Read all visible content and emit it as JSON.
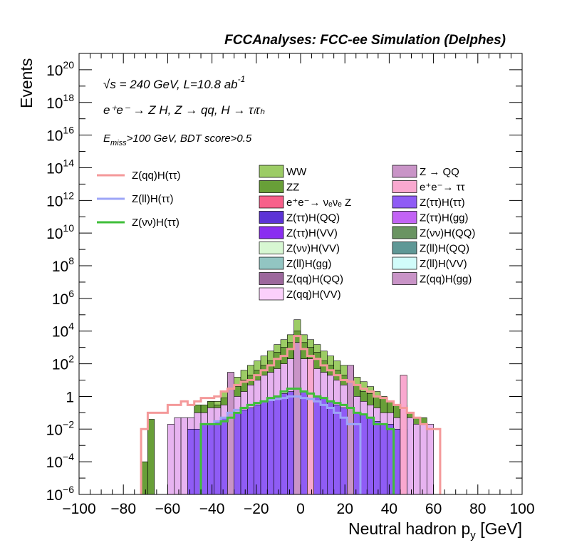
{
  "chart_data": {
    "type": "bar",
    "title": "FCCAnalyses: FCC-ee Simulation (Delphes)",
    "xlabel": "Neutral hadron p",
    "xlabel_sub": "y",
    "xlabel_unit": "[GeV]",
    "ylabel": "Events",
    "log_y": true,
    "xlim": [
      -100,
      100
    ],
    "ylim_exp": [
      -6,
      21
    ],
    "x_ticks": [
      -100,
      -80,
      -60,
      -40,
      -20,
      0,
      20,
      40,
      60,
      80,
      100
    ],
    "x_tick_labels": [
      "−100",
      "−80",
      "−60",
      "−40",
      "−20",
      "0",
      "20",
      "40",
      "60",
      "80",
      "100"
    ],
    "y_ticks": [
      {
        "exp": -6,
        "base": "10",
        "sup": "−6"
      },
      {
        "exp": -4,
        "base": "10",
        "sup": "−4"
      },
      {
        "exp": -2,
        "base": "10",
        "sup": "−2"
      },
      {
        "exp": 0,
        "base": "1",
        "sup": ""
      },
      {
        "exp": 2,
        "base": "10",
        "sup": "2"
      },
      {
        "exp": 4,
        "base": "10",
        "sup": "4"
      },
      {
        "exp": 6,
        "base": "10",
        "sup": "6"
      },
      {
        "exp": 8,
        "base": "10",
        "sup": "8"
      },
      {
        "exp": 10,
        "base": "10",
        "sup": "10"
      },
      {
        "exp": 12,
        "base": "10",
        "sup": "12"
      },
      {
        "exp": 14,
        "base": "10",
        "sup": "14"
      },
      {
        "exp": 16,
        "base": "10",
        "sup": "16"
      },
      {
        "exp": 18,
        "base": "10",
        "sup": "18"
      },
      {
        "exp": 20,
        "base": "10",
        "sup": "20"
      }
    ],
    "annotations": {
      "energy_pre": "s",
      "energy_rest": " = 240 GeV, L=10.8 ab",
      "energy_sup": "-1",
      "process": "e⁺e⁻ → Z H, Z → qq, H → τₗτₕ",
      "cut_main": "E",
      "cut_sub": "miss",
      "cut_rest": ">100 GeV, BDT score>0.5"
    },
    "stack_layers": [
      {
        "name": "WW",
        "color": "#9ccc65",
        "values": [
          null,
          null,
          null,
          null,
          null,
          null,
          null,
          null,
          null,
          null,
          null,
          null,
          null,
          null,
          null,
          null,
          null,
          0.5,
          2,
          8,
          15,
          40,
          80,
          150,
          300,
          600,
          1500,
          3000,
          6000,
          50000,
          6000,
          3000,
          1500,
          600,
          300,
          150,
          80,
          40,
          15,
          8,
          4,
          2,
          1,
          null,
          null,
          null,
          null,
          null,
          null,
          null,
          null,
          null,
          null,
          null,
          null,
          null,
          null,
          null,
          null,
          null
        ]
      },
      {
        "name": "ZZ",
        "color": "#689f38",
        "values": [
          null,
          null,
          null,
          null,
          null,
          null,
          0.0001,
          0.04,
          null,
          null,
          null,
          null,
          null,
          null,
          0.3,
          0.3,
          0.5,
          0.3,
          0.8,
          2,
          4,
          10,
          20,
          40,
          80,
          150,
          500,
          1000,
          2000,
          10000,
          2000,
          1000,
          500,
          150,
          80,
          40,
          20,
          10,
          5,
          2,
          1.5,
          1,
          0.8,
          0.5,
          0.3,
          0.3,
          0.1,
          0.05,
          0.05,
          null,
          null,
          null,
          null,
          null,
          null,
          null,
          null,
          null,
          null,
          null
        ]
      },
      {
        "name": "Z(νν)H(QQ)",
        "color": "#e7b3f0",
        "values": [
          null,
          null,
          null,
          null,
          null,
          null,
          null,
          null,
          null,
          null,
          0.02,
          0.05,
          0.05,
          0.05,
          0.1,
          0.1,
          0.2,
          0.2,
          0.3,
          0.5,
          1,
          2,
          5,
          10,
          20,
          30,
          50,
          100,
          200,
          500,
          200,
          100,
          50,
          30,
          20,
          10,
          5,
          2,
          1,
          0.5,
          0.3,
          0.2,
          0.1,
          0.1,
          0.05,
          0.05,
          0.05,
          0.02,
          0.02,
          0.02,
          null,
          null,
          null,
          null,
          null,
          null,
          null,
          null,
          null,
          null
        ]
      },
      {
        "name": "Z(ττ)H(ττ)",
        "color": "#8f5cf5",
        "values": [
          null,
          null,
          null,
          null,
          null,
          null,
          null,
          null,
          null,
          null,
          null,
          null,
          null,
          0.01,
          0.01,
          0.02,
          0.02,
          0.03,
          0.05,
          0.08,
          0.1,
          0.15,
          0.2,
          0.3,
          0.5,
          0.8,
          1,
          1.5,
          2,
          3,
          2,
          1.5,
          1,
          0.8,
          0.5,
          0.3,
          0.2,
          0.15,
          0.1,
          0.08,
          0.05,
          0.03,
          0.02,
          0.02,
          0.01,
          0.01,
          null,
          null,
          null,
          null,
          null,
          null,
          null,
          null,
          null,
          null,
          null,
          null,
          null,
          null
        ]
      }
    ],
    "hatched_bins": [
      {
        "x": -3,
        "value": 2000,
        "color": "#c994c7"
      },
      {
        "x": 3,
        "value": 200,
        "color": "#f9a8cf"
      },
      {
        "x": 21,
        "value": 80,
        "color": "#c994c7"
      },
      {
        "x": 45,
        "value": 20,
        "color": "#f9a8cf"
      },
      {
        "x": -33,
        "value": 30,
        "color": "#c994c7"
      }
    ],
    "overlay_lines": [
      {
        "name": "Z(qq)H(ττ)",
        "color": "#f4999a",
        "values": [
          null,
          null,
          null,
          null,
          null,
          null,
          0.01,
          0.1,
          0.1,
          0.1,
          0.3,
          0.3,
          0.5,
          0.3,
          0.5,
          0.8,
          0.8,
          1,
          2,
          3,
          5,
          8,
          10,
          20,
          40,
          80,
          200,
          300,
          800,
          5000,
          800,
          300,
          200,
          80,
          40,
          20,
          10,
          8,
          5,
          3,
          2,
          1,
          0.8,
          0.5,
          0.3,
          0.2,
          0.1,
          0.05,
          0.02,
          0.01,
          0.01,
          null,
          null,
          null,
          null,
          null,
          null,
          null,
          null,
          null
        ]
      },
      {
        "name": "Z(ll)H(ττ)",
        "color": "#9da5f7",
        "values": [
          null,
          null,
          null,
          null,
          null,
          null,
          null,
          null,
          null,
          null,
          null,
          null,
          null,
          null,
          null,
          0.02,
          0.02,
          0.03,
          0.05,
          0.1,
          0.15,
          0.2,
          0.3,
          0.4,
          0.5,
          0.6,
          0.7,
          0.8,
          1,
          1,
          0.8,
          0.7,
          0.5,
          0.3,
          0.2,
          0.1,
          0.05,
          0.02,
          0.02,
          null,
          null,
          null,
          null,
          null,
          null,
          null,
          null,
          null,
          null,
          null,
          null,
          null,
          null,
          null,
          null,
          null,
          null,
          null,
          null,
          null
        ]
      },
      {
        "name": "Z(νν)H(ττ)",
        "color": "#3fbe3a",
        "values": [
          null,
          null,
          null,
          null,
          null,
          null,
          null,
          null,
          null,
          null,
          null,
          null,
          null,
          null,
          null,
          0.02,
          0.02,
          0.02,
          0.03,
          0.05,
          0.1,
          0.2,
          0.3,
          0.4,
          0.5,
          0.8,
          1,
          2,
          3,
          3,
          2,
          1.5,
          1,
          0.8,
          0.5,
          0.4,
          0.3,
          0.2,
          0.1,
          0.08,
          0.05,
          0.02,
          0.02,
          0.01,
          null,
          null,
          null,
          null,
          null,
          null,
          null,
          null,
          null,
          null,
          null,
          null,
          null,
          null,
          null,
          null
        ]
      }
    ],
    "bin_edges_start": -90,
    "bin_width": 3,
    "legend_lines": [
      {
        "label": "Z(qq)H(ττ)",
        "color": "#f4999a"
      },
      {
        "label": "Z(ll)H(ττ)",
        "color": "#9da5f7"
      },
      {
        "label": "Z(νν)H(ττ)",
        "color": "#3fbe3a"
      }
    ],
    "legend_fills": [
      {
        "label": "WW",
        "color": "#9ccc65"
      },
      {
        "label": "Z → QQ",
        "color": "#c994c7"
      },
      {
        "label": "ZZ",
        "color": "#689f38"
      },
      {
        "label": "e⁺e⁻→ ττ",
        "color": "#f9a8cf"
      },
      {
        "label": "e⁺e⁻→ νₑνₑ Z",
        "color": "#f7608a"
      },
      {
        "label": "Z(ττ)H(ττ)",
        "color": "#8f5cf5"
      },
      {
        "label": "Z(ττ)H(QQ)",
        "color": "#5c33d6"
      },
      {
        "label": "Z(ττ)H(gg)",
        "color": "#c263f5"
      },
      {
        "label": "Z(ττ)H(VV)",
        "color": "#8a2ef0"
      },
      {
        "label": "Z(νν)H(QQ)",
        "color": "#6a9462"
      },
      {
        "label": "Z(νν)H(VV)",
        "color": "#d7f7d2"
      },
      {
        "label": "Z(ll)H(QQ)",
        "color": "#5f9896"
      },
      {
        "label": "Z(ll)H(gg)",
        "color": "#92c5c2"
      },
      {
        "label": "Z(ll)H(VV)",
        "color": "#d1fcfa"
      },
      {
        "label": "Z(qq)H(QQ)",
        "color": "#9c679c"
      },
      {
        "label": "Z(qq)H(gg)",
        "color": "#c994c7"
      },
      {
        "label": "Z(qq)H(VV)",
        "color": "#fbd0fb"
      }
    ]
  }
}
